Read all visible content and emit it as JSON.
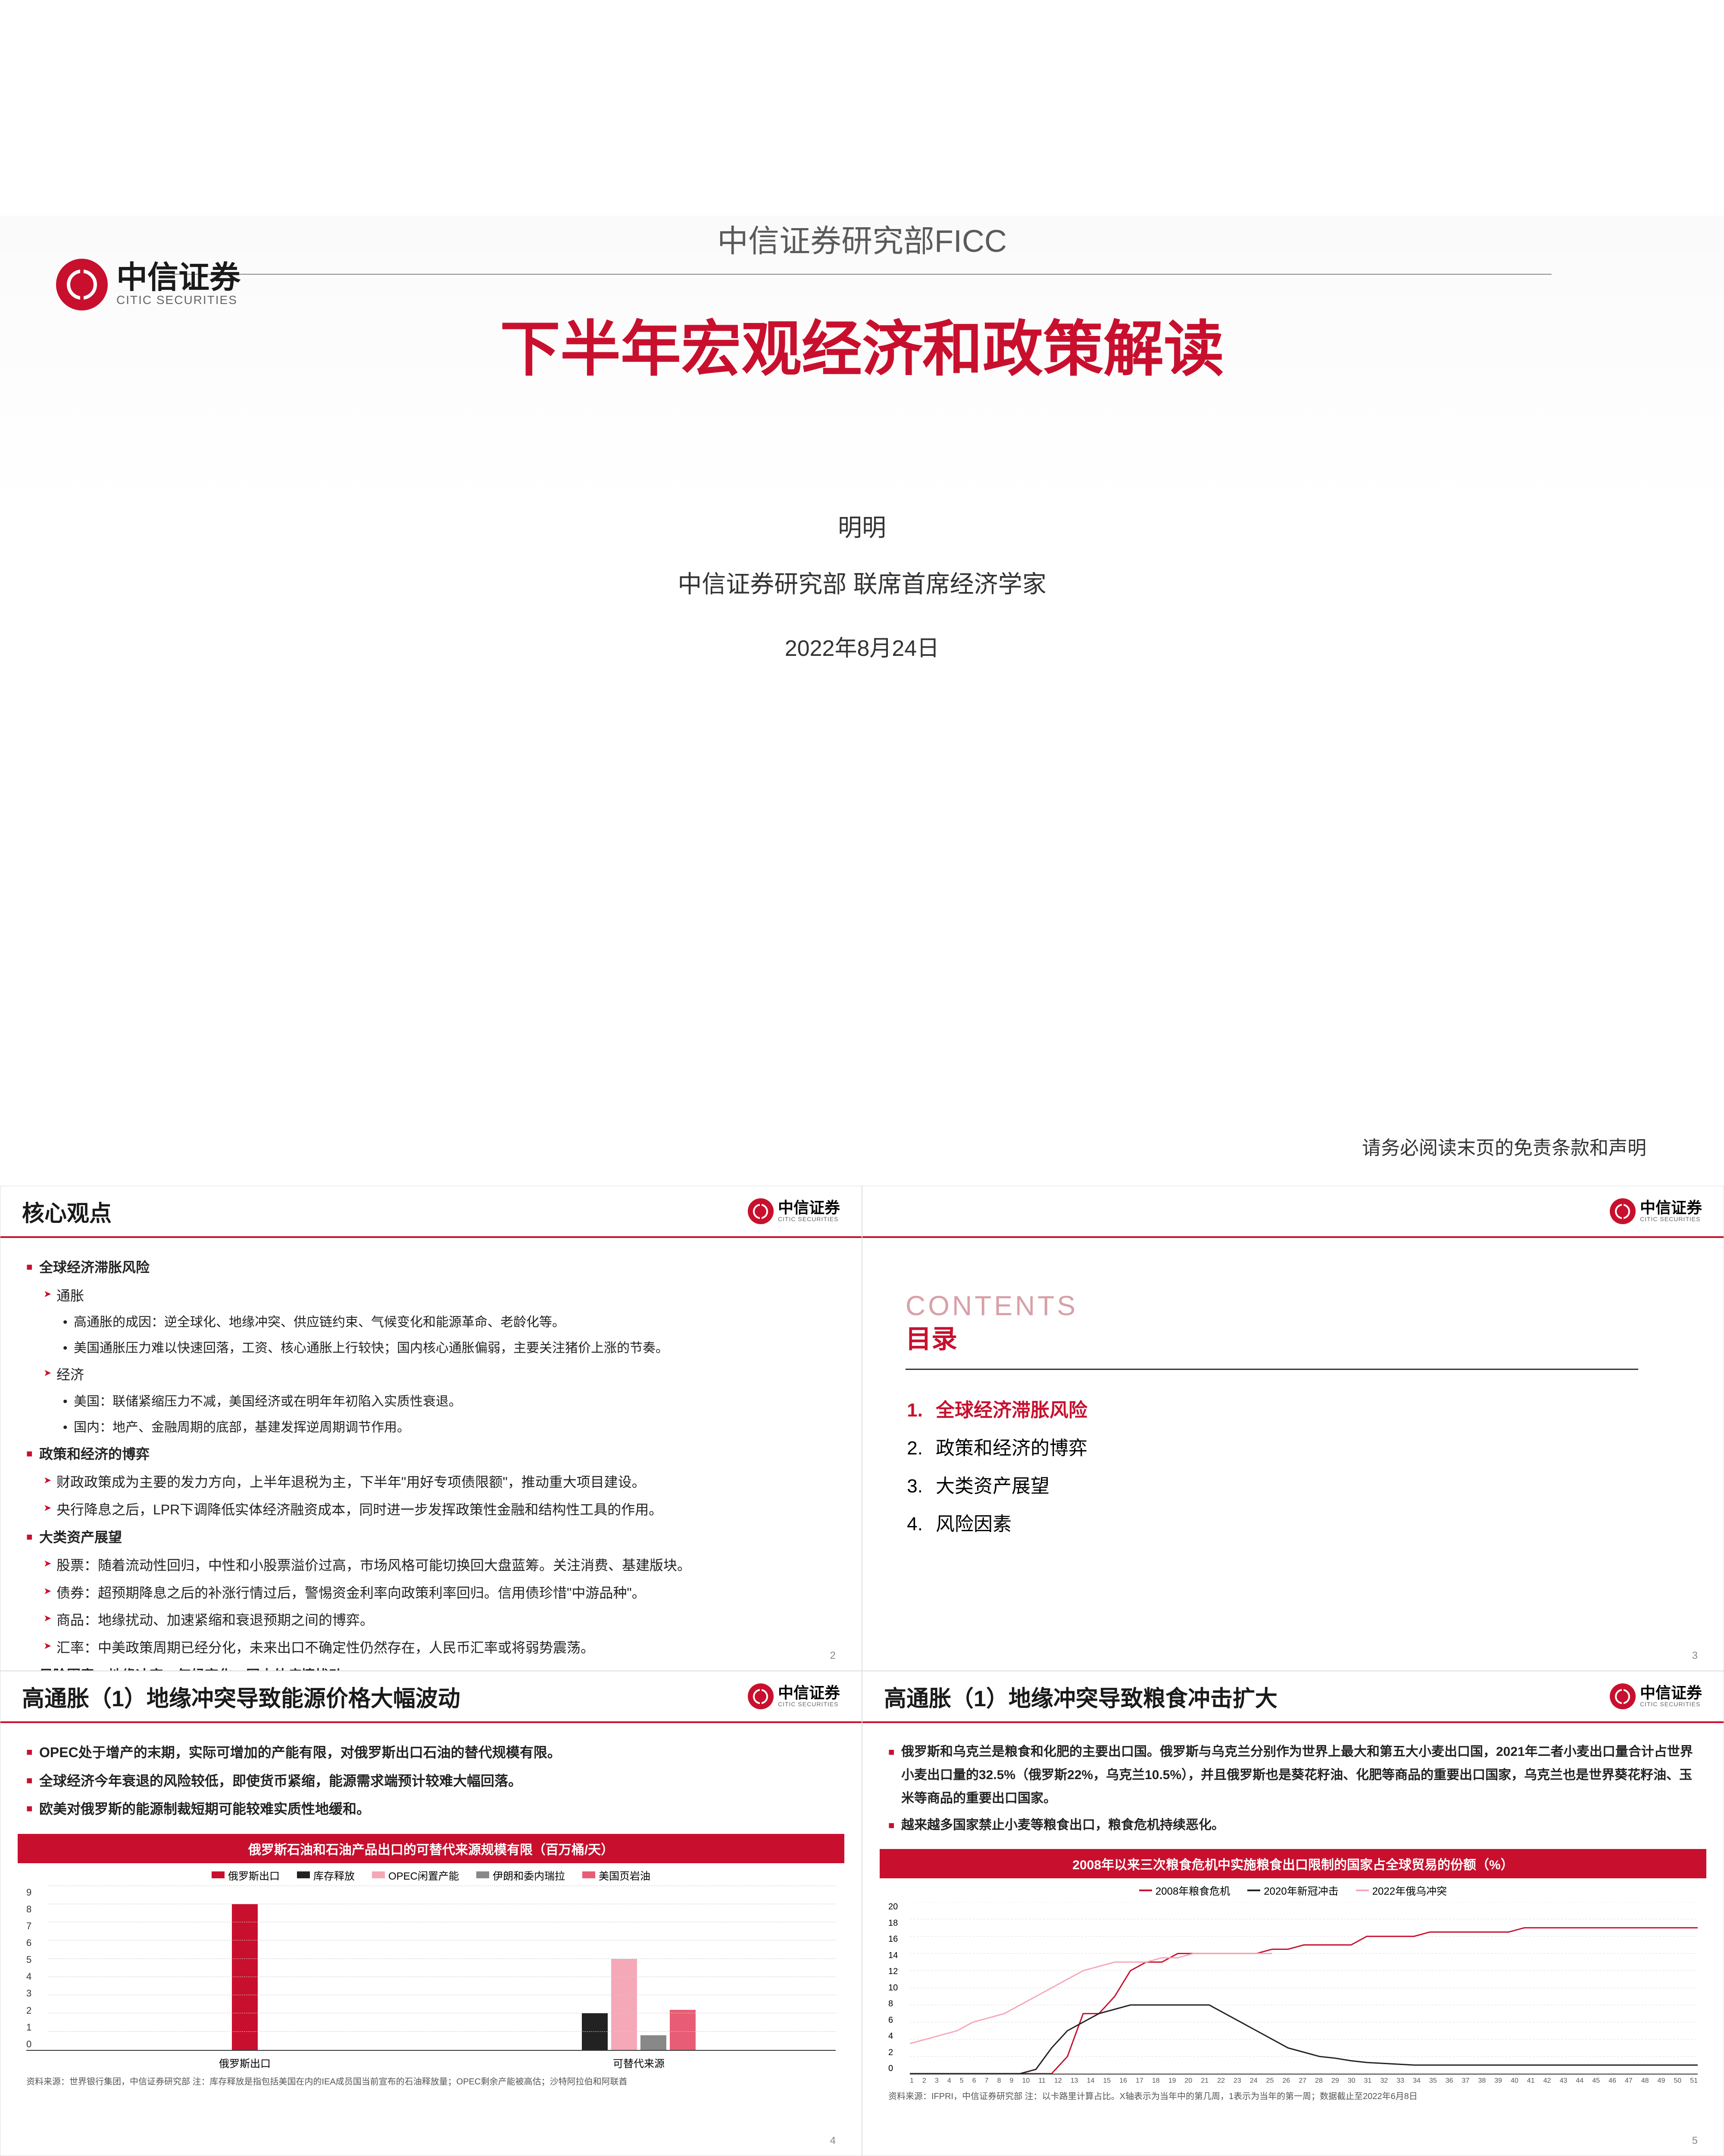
{
  "logo": {
    "cn": "中信证券",
    "en": "CITIC SECURITIES"
  },
  "cover": {
    "dept": "中信证券研究部FICC",
    "title": "下半年宏观经济和政策解读",
    "author": "明明",
    "role": "中信证券研究部 联席首席经济学家",
    "date": "2022年8月24日",
    "disclaimer": "请务必阅读末页的免责条款和声明"
  },
  "slide2": {
    "title": "核心观点",
    "page": "2",
    "sections": [
      {
        "h": "全球经济滞胀风险",
        "sub": [
          {
            "h2": "通胀",
            "items": [
              "高通胀的成因：逆全球化、地缘冲突、供应链约束、气候变化和能源革命、老龄化等。",
              "美国通胀压力难以快速回落，工资、核心通胀上行较快；国内核心通胀偏弱，主要关注猪价上涨的节奏。"
            ]
          },
          {
            "h2": "经济",
            "items": [
              "美国：联储紧缩压力不减，美国经济或在明年年初陷入实质性衰退。",
              "国内：地产、金融周期的底部，基建发挥逆周期调节作用。"
            ]
          }
        ]
      },
      {
        "h": "政策和经济的博弈",
        "sub": [
          {
            "items": [
              "财政政策成为主要的发力方向，上半年退税为主，下半年\"用好专项债限额\"，推动重大项目建设。",
              "央行降息之后，LPR下调降低实体经济融资成本，同时进一步发挥政策性金融和结构性工具的作用。"
            ]
          }
        ]
      },
      {
        "h": "大类资产展望",
        "sub": [
          {
            "items": [
              "股票：随着流动性回归，中性和小股票溢价过高，市场风格可能切换回大盘蓝筹。关注消费、基建版块。",
              "债券：超预期降息之后的补涨行情过后，警惕资金利率向政策利率回归。信用债珍惜\"中游品种\"。",
              "商品：地缘扰动、加速紧缩和衰退预期之间的博弈。",
              "汇率：中美政策周期已经分化，未来出口不确定性仍然存在，人民币汇率或将弱势震荡。"
            ]
          }
        ]
      },
      {
        "h": "风险因素：地缘冲突、气候变化、国内外疫情扰动。"
      }
    ]
  },
  "slide3": {
    "page": "3",
    "contents_en": "CONTENTS",
    "contents_cn": "目录",
    "toc": [
      {
        "n": "1.",
        "t": "全球经济滞胀风险",
        "active": true
      },
      {
        "n": "2.",
        "t": "政策和经济的博弈",
        "active": false
      },
      {
        "n": "3.",
        "t": "大类资产展望",
        "active": false
      },
      {
        "n": "4.",
        "t": "风险因素",
        "active": false
      }
    ]
  },
  "slide4": {
    "title": "高通胀（1）地缘冲突导致能源价格大幅波动",
    "page": "4",
    "bullets": [
      "OPEC处于增产的末期，实际可增加的产能有限，对俄罗斯出口石油的替代规模有限。",
      "全球经济今年衰退的风险较低，即使货币紧缩，能源需求端预计较难大幅回落。",
      "欧美对俄罗斯的能源制裁短期可能较难实质性地缓和。"
    ],
    "chart": {
      "type": "bar",
      "title": "俄罗斯石油和石油产品出口的可替代来源规模有限（百万桶/天）",
      "legend": [
        {
          "label": "俄罗斯出口",
          "color": "#c8102e"
        },
        {
          "label": "库存释放",
          "color": "#222222"
        },
        {
          "label": "OPEC闲置产能",
          "color": "#f5a8b8"
        },
        {
          "label": "伊朗和委内瑞拉",
          "color": "#888888"
        },
        {
          "label": "美国页岩油",
          "color": "#e85d75"
        }
      ],
      "ylim": [
        0,
        9
      ],
      "ytick_step": 1,
      "categories": [
        "俄罗斯出口",
        "可替代来源"
      ],
      "groups": [
        [
          {
            "v": 8,
            "color": "#c8102e"
          }
        ],
        [
          {
            "v": 2,
            "color": "#222222"
          },
          {
            "v": 5,
            "color": "#f5a8b8"
          },
          {
            "v": 0.8,
            "color": "#888888"
          },
          {
            "v": 2.2,
            "color": "#e85d75"
          }
        ]
      ],
      "grid_color": "#cccccc",
      "source": "资料来源：世界银行集团，中信证券研究部 注：库存释放是指包括美国在内的IEA成员国当前宣布的石油释放量；OPEC剩余产能被高估；沙特阿拉伯和阿联酋"
    }
  },
  "slide5": {
    "title": "高通胀（1）地缘冲突导致粮食冲击扩大",
    "page": "5",
    "bullets": [
      "俄罗斯和乌克兰是粮食和化肥的主要出口国。俄罗斯与乌克兰分别作为世界上最大和第五大小麦出口国，2021年二者小麦出口量合计占世界小麦出口量的32.5%（俄罗斯22%，乌克兰10.5%），并且俄罗斯也是葵花籽油、化肥等商品的重要出口国家，乌克兰也是世界葵花籽油、玉米等商品的重要出口国家。",
      "越来越多国家禁止小麦等粮食出口，粮食危机持续恶化。"
    ],
    "chart": {
      "type": "line",
      "title": "2008年以来三次粮食危机中实施粮食出口限制的国家占全球贸易的份额（%）",
      "legend": [
        {
          "label": "2008年粮食危机",
          "color": "#c8102e"
        },
        {
          "label": "2020年新冠冲击",
          "color": "#222222"
        },
        {
          "label": "2022年俄乌冲突",
          "color": "#f5a8b8"
        }
      ],
      "ylim": [
        0,
        20
      ],
      "ytick_step": 2,
      "x_ticks": [
        1,
        2,
        3,
        4,
        5,
        6,
        7,
        8,
        9,
        10,
        11,
        12,
        13,
        14,
        15,
        16,
        17,
        18,
        19,
        20,
        21,
        22,
        23,
        24,
        25,
        26,
        27,
        28,
        29,
        30,
        31,
        32,
        33,
        34,
        35,
        36,
        37,
        38,
        39,
        40,
        41,
        42,
        43,
        44,
        45,
        46,
        47,
        48,
        49,
        50,
        51
      ],
      "series": {
        "s2008": {
          "color": "#c8102e",
          "width": 3,
          "values": [
            0,
            0,
            0,
            0,
            0,
            0,
            0,
            0,
            0,
            0,
            2,
            7,
            7,
            9,
            12,
            13,
            13,
            14,
            14,
            14,
            14,
            14,
            14,
            14.5,
            14.5,
            15,
            15,
            15,
            15,
            16,
            16,
            16,
            16,
            16.5,
            16.5,
            16.5,
            16.5,
            16.5,
            16.5,
            17,
            17,
            17,
            17,
            17,
            17,
            17,
            17,
            17,
            17,
            17,
            17
          ]
        },
        "s2020": {
          "color": "#222222",
          "width": 3,
          "values": [
            0,
            0,
            0,
            0,
            0,
            0,
            0,
            0,
            0.5,
            3,
            5,
            6,
            7,
            7.5,
            8,
            8,
            8,
            8,
            8,
            8,
            7,
            6,
            5,
            4,
            3,
            2.5,
            2,
            1.8,
            1.5,
            1.3,
            1.2,
            1.1,
            1,
            1,
            1,
            1,
            1,
            1,
            1,
            1,
            1,
            1,
            1,
            1,
            1,
            1,
            1,
            1,
            1,
            1,
            1
          ]
        },
        "s2022": {
          "color": "#f5a8b8",
          "width": 3,
          "values": [
            3.5,
            4,
            4.5,
            5,
            6,
            6.5,
            7,
            8,
            9,
            10,
            11,
            12,
            12.5,
            13,
            13,
            13,
            13.5,
            13.5,
            14,
            14,
            14,
            14,
            14,
            14
          ]
        }
      },
      "source": "资料来源：IFPRI，中信证券研究部 注：以卡路里计算占比。X轴表示为当年中的第几周，1表示为当年的第一周；数据截止至2022年6月8日"
    }
  }
}
